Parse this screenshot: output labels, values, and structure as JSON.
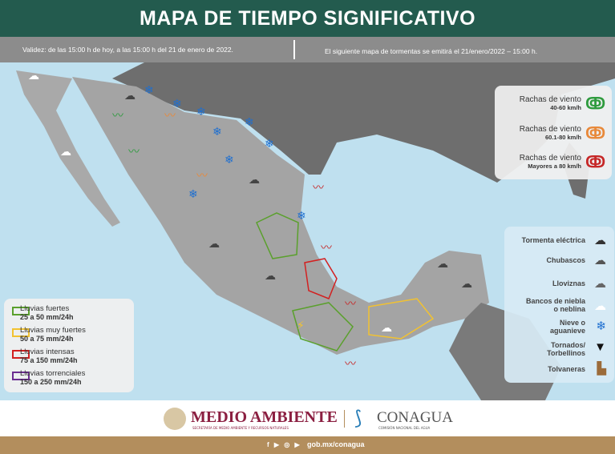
{
  "header": {
    "title": "MAPA DE TIEMPO SIGNIFICATIVO"
  },
  "info": {
    "validity": "Validez: de las 15:00  h de hoy, a las 15:00  h del 21 de enero de 2022.",
    "next_map": "El siguiente mapa de tormentas se emitirá el 21/enero/2022 – 15:00  h."
  },
  "wind_legend": [
    {
      "label": "Rachas de viento",
      "range": "40-60 km/h",
      "color": "#2e9b3e"
    },
    {
      "label": "Rachas de viento",
      "range": "60.1-80 km/h",
      "color": "#e8893a"
    },
    {
      "label": "Rachas de viento",
      "range": "Mayores a 80 km/h",
      "color": "#c62828"
    }
  ],
  "phenomena_legend": [
    {
      "label": "Tormenta eléctrica",
      "icon": "thunderstorm-icon"
    },
    {
      "label": "Chubascos",
      "icon": "showers-icon"
    },
    {
      "label": "Lloviznas",
      "icon": "drizzle-icon"
    },
    {
      "label": "Bancos de niebla o neblina",
      "icon": "fog-icon"
    },
    {
      "label": "Nieve o aguanieve",
      "icon": "snow-icon"
    },
    {
      "label": "Tornados/ Torbellinos",
      "icon": "tornado-icon"
    },
    {
      "label": "Tolvaneras",
      "icon": "dust-storm-icon"
    }
  ],
  "rain_legend": [
    {
      "label": "Lluvias fuertes",
      "range": "25 a 50 mm/24h",
      "color": "#5aa02c"
    },
    {
      "label": "Lluvias muy fuertes",
      "range": "50 a 75 mm/24h",
      "color": "#f2c230"
    },
    {
      "label": "Lluvias intensas",
      "range": "75 a 150 mm/24h",
      "color": "#d32020"
    },
    {
      "label": "Lluvias torrenciales",
      "range": "150 a 250 mm/24h",
      "color": "#6a2c91"
    }
  ],
  "footer": {
    "ministry": "MEDIO AMBIENTE",
    "ministry_sub": "SECRETARÍA DE MEDIO AMBIENTE Y RECURSOS NATURALES",
    "agency": "CONAGUA",
    "agency_sub": "COMISIÓN NACIONAL DEL AGUA",
    "social": "f ▶ ◎ ▶",
    "url": "gob.mx/conagua"
  }
}
